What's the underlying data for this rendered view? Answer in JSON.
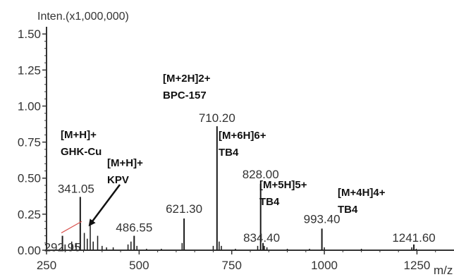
{
  "chart_data": {
    "type": "mass-spectrum",
    "ylabel": "Inten.(x1,000,000)",
    "xlabel": "m/z",
    "xlim": [
      250,
      1350
    ],
    "ylim": [
      0,
      1.55
    ],
    "x_ticks": [
      250,
      500,
      750,
      1000,
      1250
    ],
    "y_ticks": [
      "0.00",
      "0.25",
      "0.50",
      "0.75",
      "1.00",
      "1.25",
      "1.50"
    ],
    "y_tick_values": [
      0,
      0.25,
      0.5,
      0.75,
      1.0,
      1.25,
      1.5
    ],
    "peaks": [
      {
        "mz": 292.95,
        "intensity": 0.1,
        "label": "292.95"
      },
      {
        "mz": 341.05,
        "intensity": 0.37,
        "label": "341.05"
      },
      {
        "mz": 486.55,
        "intensity": 0.1,
        "label": "486.55"
      },
      {
        "mz": 621.3,
        "intensity": 0.22,
        "label": "621.30"
      },
      {
        "mz": 710.2,
        "intensity": 0.86,
        "label": "710.20"
      },
      {
        "mz": 828.0,
        "intensity": 0.46,
        "label": "828.00"
      },
      {
        "mz": 834.4,
        "intensity": 0.05,
        "label": "834.40"
      },
      {
        "mz": 993.4,
        "intensity": 0.15,
        "label": "993.40"
      },
      {
        "mz": 1241.6,
        "intensity": 0.04,
        "label": "1241.60"
      }
    ],
    "minor_peaks": [
      {
        "mz": 300,
        "intensity": 0.04
      },
      {
        "mz": 318,
        "intensity": 0.06
      },
      {
        "mz": 330,
        "intensity": 0.05
      },
      {
        "mz": 352,
        "intensity": 0.12
      },
      {
        "mz": 360,
        "intensity": 0.08
      },
      {
        "mz": 368,
        "intensity": 0.2
      },
      {
        "mz": 376,
        "intensity": 0.06
      },
      {
        "mz": 388,
        "intensity": 0.1
      },
      {
        "mz": 400,
        "intensity": 0.03
      },
      {
        "mz": 412,
        "intensity": 0.02
      },
      {
        "mz": 430,
        "intensity": 0.02
      },
      {
        "mz": 470,
        "intensity": 0.04
      },
      {
        "mz": 478,
        "intensity": 0.06
      },
      {
        "mz": 494,
        "intensity": 0.03
      },
      {
        "mz": 520,
        "intensity": 0.01
      },
      {
        "mz": 560,
        "intensity": 0.01
      },
      {
        "mz": 616,
        "intensity": 0.05
      },
      {
        "mz": 700,
        "intensity": 0.03
      },
      {
        "mz": 716,
        "intensity": 0.06
      },
      {
        "mz": 722,
        "intensity": 0.03
      },
      {
        "mz": 760,
        "intensity": 0.01
      },
      {
        "mz": 820,
        "intensity": 0.03
      },
      {
        "mz": 838,
        "intensity": 0.03
      },
      {
        "mz": 845,
        "intensity": 0.02
      },
      {
        "mz": 900,
        "intensity": 0.01
      },
      {
        "mz": 960,
        "intensity": 0.01
      },
      {
        "mz": 1000,
        "intensity": 0.02
      },
      {
        "mz": 1100,
        "intensity": 0.01
      },
      {
        "mz": 1236,
        "intensity": 0.02
      },
      {
        "mz": 1248,
        "intensity": 0.01
      }
    ],
    "annotations": [
      {
        "lines": [
          "[M+2H]2+",
          "BPC-157"
        ]
      },
      {
        "lines": [
          "[M+6H]6+",
          "TB4"
        ]
      },
      {
        "lines": [
          "[M+5H]5+",
          "TB4"
        ]
      },
      {
        "lines": [
          "[M+4H]4+",
          "TB4"
        ]
      },
      {
        "lines": [
          "[M+H]+",
          "GHK-Cu"
        ]
      },
      {
        "lines": [
          "[M+H]+",
          "KPV"
        ]
      }
    ],
    "colors": {
      "peak": "#1a1a1a",
      "axis": "#333333",
      "arrow": "#111111",
      "baseline_highlight": "#d9534f"
    }
  }
}
